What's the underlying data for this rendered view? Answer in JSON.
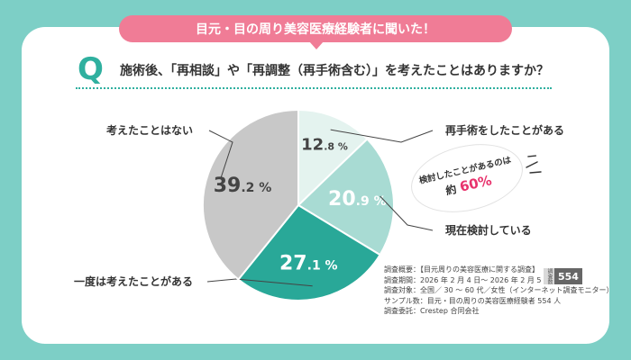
{
  "banner": "目元・目の周り美容医療経験者に聞いた！",
  "question_mark": "Q",
  "question": "施術後、「再相談」や「再調整（再手術含む）」を考えたことはありますか？",
  "callout": {
    "line1": "検討したことがあるのは",
    "prefix": "約",
    "value": "60%"
  },
  "survey": {
    "lines": [
      "調査概要：【目元周りの美容医療に関する調査】",
      "調査期間：2026 年 2 月 4 日～ 2026 年 2 月 5 日",
      "調査対象：全国／ 30 ～ 60 代／女性（インターネット調査モニター）",
      "サンプル数：目元・目の周りの美容医療経験者 554 人",
      "調査委託：Crestep 合同会社"
    ],
    "badge_label": "調査数",
    "badge_value": "554"
  },
  "chart_data": {
    "type": "pie",
    "title": "",
    "start": "top",
    "direction": "clockwise",
    "slices": [
      {
        "label": "再手術をしたことがある",
        "value": 12.8,
        "num": "12.8",
        "color": "#e4f3ef",
        "text_color": "#444444"
      },
      {
        "label": "現在検討している",
        "value": 20.9,
        "num": "20.9",
        "color": "#a8dbd3",
        "text_color": "#ffffff"
      },
      {
        "label": "一度は考えたことがある",
        "value": 27.1,
        "num": "27.1",
        "color": "#29a898",
        "text_color": "#ffffff"
      },
      {
        "label": "考えたことはない",
        "value": 39.2,
        "num": "39.2",
        "color": "#c8c8c8",
        "text_color": "#444444"
      }
    ]
  }
}
